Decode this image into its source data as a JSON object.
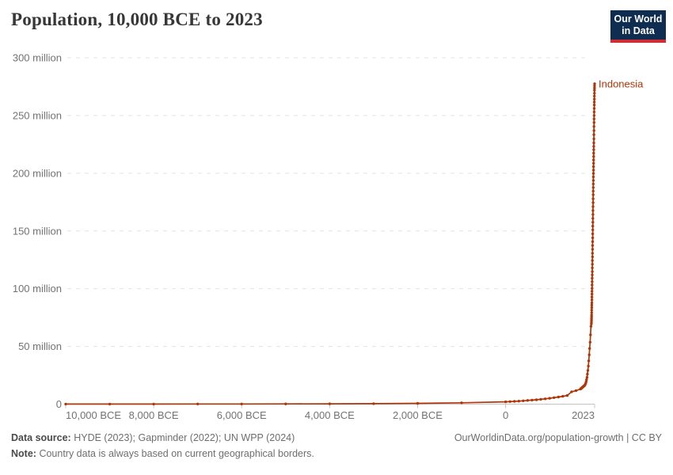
{
  "header": {
    "title": "Population, 10,000 BCE to 2023",
    "logo": {
      "line1": "Our World",
      "line2": "in Data",
      "bg_color": "#0e2d51",
      "bar_color": "#d52c33"
    }
  },
  "chart_data": {
    "type": "line",
    "title": "Population, 10,000 BCE to 2023",
    "xlabel": "",
    "ylabel": "",
    "unit": "million people",
    "xlim": [
      -10000,
      2023
    ],
    "ylim": [
      0,
      300
    ],
    "grid": "horizontal dashed",
    "grid_color": "#e3e3e3",
    "axis_color": "#c4c4c4",
    "tick_label_color": "#737373",
    "legend_position": "end-of-line label",
    "x_ticks": [
      {
        "value": -10000,
        "label": "10,000 BCE"
      },
      {
        "value": -8000,
        "label": "8,000 BCE"
      },
      {
        "value": -6000,
        "label": "6,000 BCE"
      },
      {
        "value": -4000,
        "label": "4,000 BCE"
      },
      {
        "value": -2000,
        "label": "2,000 BCE"
      },
      {
        "value": 0,
        "label": "0"
      },
      {
        "value": 2023,
        "label": "2023"
      }
    ],
    "y_ticks": [
      {
        "value": 0,
        "label": "0"
      },
      {
        "value": 50,
        "label": "50 million"
      },
      {
        "value": 100,
        "label": "100 million"
      },
      {
        "value": 150,
        "label": "150 million"
      },
      {
        "value": 200,
        "label": "200 million"
      },
      {
        "value": 250,
        "label": "250 million"
      },
      {
        "value": 300,
        "label": "300 million"
      }
    ],
    "series": [
      {
        "name": "Indonesia",
        "color": "#b13507",
        "points": [
          [
            -10000,
            0.06
          ],
          [
            -9000,
            0.07
          ],
          [
            -8000,
            0.09
          ],
          [
            -7000,
            0.11
          ],
          [
            -6000,
            0.15
          ],
          [
            -5000,
            0.2
          ],
          [
            -4000,
            0.26
          ],
          [
            -3000,
            0.43
          ],
          [
            -2000,
            0.7
          ],
          [
            -1000,
            1.2
          ],
          [
            0,
            2.0
          ],
          [
            100,
            2.2
          ],
          [
            200,
            2.4
          ],
          [
            300,
            2.6
          ],
          [
            400,
            2.9
          ],
          [
            500,
            3.2
          ],
          [
            600,
            3.5
          ],
          [
            700,
            3.8
          ],
          [
            800,
            4.2
          ],
          [
            900,
            4.6
          ],
          [
            1000,
            5.1
          ],
          [
            1100,
            5.6
          ],
          [
            1200,
            6.2
          ],
          [
            1300,
            6.8
          ],
          [
            1400,
            7.5
          ],
          [
            1500,
            10.7
          ],
          [
            1600,
            11.7
          ],
          [
            1700,
            13.1
          ],
          [
            1710,
            13.4
          ],
          [
            1720,
            13.7
          ],
          [
            1730,
            14.0
          ],
          [
            1740,
            14.4
          ],
          [
            1750,
            14.7
          ],
          [
            1760,
            15.0
          ],
          [
            1770,
            15.4
          ],
          [
            1780,
            15.7
          ],
          [
            1790,
            16.0
          ],
          [
            1800,
            16.4
          ],
          [
            1810,
            17.2
          ],
          [
            1820,
            18.0
          ],
          [
            1830,
            19.5
          ],
          [
            1840,
            21.2
          ],
          [
            1850,
            23.2
          ],
          [
            1860,
            26.0
          ],
          [
            1870,
            29.2
          ],
          [
            1880,
            33.0
          ],
          [
            1890,
            37.5
          ],
          [
            1900,
            42.7
          ],
          [
            1910,
            48.2
          ],
          [
            1920,
            53.6
          ],
          [
            1930,
            60.0
          ],
          [
            1940,
            67.4
          ],
          [
            1950,
            69.5
          ],
          [
            1951,
            71.0
          ],
          [
            1952,
            72.6
          ],
          [
            1953,
            74.1
          ],
          [
            1954,
            75.7
          ],
          [
            1955,
            77.2
          ],
          [
            1956,
            79.3
          ],
          [
            1957,
            81.4
          ],
          [
            1958,
            83.6
          ],
          [
            1959,
            85.7
          ],
          [
            1960,
            87.8
          ],
          [
            1961,
            90.3
          ],
          [
            1962,
            92.8
          ],
          [
            1963,
            95.3
          ],
          [
            1964,
            97.8
          ],
          [
            1965,
            100.3
          ],
          [
            1966,
            103.2
          ],
          [
            1967,
            106.1
          ],
          [
            1968,
            109.0
          ],
          [
            1969,
            111.9
          ],
          [
            1970,
            114.8
          ],
          [
            1971,
            118.0
          ],
          [
            1972,
            121.2
          ],
          [
            1973,
            124.4
          ],
          [
            1974,
            127.6
          ],
          [
            1975,
            130.7
          ],
          [
            1976,
            134.1
          ],
          [
            1977,
            137.4
          ],
          [
            1978,
            140.8
          ],
          [
            1979,
            144.1
          ],
          [
            1980,
            147.5
          ],
          [
            1981,
            150.9
          ],
          [
            1982,
            154.2
          ],
          [
            1983,
            157.6
          ],
          [
            1984,
            160.9
          ],
          [
            1985,
            164.3
          ],
          [
            1986,
            167.7
          ],
          [
            1987,
            171.1
          ],
          [
            1988,
            174.5
          ],
          [
            1989,
            177.9
          ],
          [
            1990,
            181.4
          ],
          [
            1991,
            184.5
          ],
          [
            1992,
            187.6
          ],
          [
            1993,
            190.7
          ],
          [
            1994,
            193.8
          ],
          [
            1995,
            196.9
          ],
          [
            1996,
            199.8
          ],
          [
            1997,
            202.7
          ],
          [
            1998,
            205.7
          ],
          [
            1999,
            208.6
          ],
          [
            2000,
            211.5
          ],
          [
            2001,
            214.5
          ],
          [
            2002,
            217.4
          ],
          [
            2003,
            220.4
          ],
          [
            2004,
            223.3
          ],
          [
            2005,
            226.3
          ],
          [
            2006,
            229.8
          ],
          [
            2007,
            233.4
          ],
          [
            2008,
            236.9
          ],
          [
            2009,
            240.5
          ],
          [
            2010,
            244.0
          ],
          [
            2011,
            247.0
          ],
          [
            2012,
            250.0
          ],
          [
            2013,
            253.1
          ],
          [
            2014,
            256.1
          ],
          [
            2015,
            259.1
          ],
          [
            2016,
            261.7
          ],
          [
            2017,
            264.2
          ],
          [
            2018,
            266.8
          ],
          [
            2019,
            269.3
          ],
          [
            2020,
            271.9
          ],
          [
            2021,
            273.8
          ],
          [
            2022,
            275.7
          ],
          [
            2023,
            277.5
          ]
        ]
      }
    ]
  },
  "footer": {
    "source_label": "Data source:",
    "source_text": "HYDE (2023); Gapminder (2022); UN WPP (2024)",
    "note_label": "Note:",
    "note_text": "Country data is always based on current geographical borders.",
    "attribution": "OurWorldinData.org/population-growth | CC BY"
  }
}
